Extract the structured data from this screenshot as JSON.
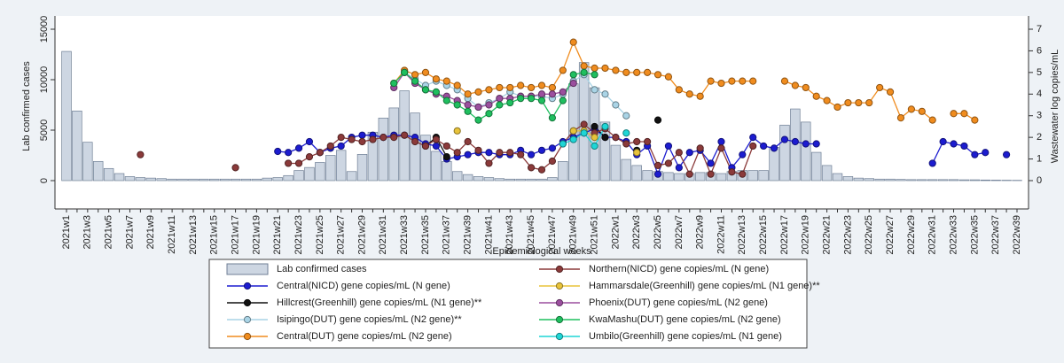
{
  "chart_data": {
    "type": "bar-line",
    "xlabel": "Epidemiological weeks",
    "ylabel": "Lab confirmed cases",
    "y2label": "Wastewater log copies/mL",
    "ylim": [
      0,
      15000
    ],
    "yticks": [
      0,
      5000,
      10000,
      15000
    ],
    "y2lim": [
      0,
      7
    ],
    "y2ticks": [
      0,
      1,
      2,
      3,
      4,
      5,
      6,
      7
    ],
    "categories": [
      "2021w1",
      null,
      "2021w3",
      null,
      "2021w5",
      null,
      "2021w7",
      null,
      "2021w9",
      null,
      "2021w11",
      null,
      "2021w13",
      null,
      "2021w15",
      null,
      "2021w17",
      null,
      "2021w19",
      null,
      "2021w21",
      null,
      "2021w23",
      null,
      "2021w25",
      null,
      "2021w27",
      null,
      "2021w29",
      null,
      "2021w31",
      null,
      "2021w33",
      null,
      "2021w35",
      null,
      "2021w37",
      null,
      "2021w39",
      null,
      "2021w41",
      null,
      "2021w43",
      null,
      "2021w45",
      null,
      "2021w47",
      null,
      "2021w49",
      null,
      "2021w51",
      null,
      "2022w1",
      null,
      "2022w3",
      null,
      "2022w5",
      null,
      "2022w7",
      null,
      "2022w9",
      null,
      "2022w11",
      null,
      "2022w13",
      null,
      "2022w15",
      null,
      "2022w17",
      null,
      "2022w19",
      null,
      "2022w21",
      null,
      "2022w23",
      null,
      "2022w25",
      null,
      "2022w27",
      null,
      "2022w29",
      null,
      "2022w31",
      null,
      "2022w33",
      null,
      "2022w35",
      null,
      "2022w37",
      null,
      "2022w39"
    ],
    "bars": {
      "name": "Lab confirmed cases",
      "color": "#cdd6e2",
      "values": [
        12800,
        6900,
        3800,
        1900,
        1200,
        700,
        400,
        300,
        250,
        200,
        150,
        150,
        150,
        150,
        150,
        150,
        150,
        150,
        150,
        250,
        300,
        500,
        1000,
        1300,
        1800,
        2500,
        3000,
        900,
        2600,
        4800,
        6200,
        7200,
        8900,
        6700,
        4500,
        2900,
        1900,
        900,
        600,
        400,
        300,
        200,
        150,
        150,
        150,
        150,
        300,
        1900,
        9600,
        11700,
        9200,
        5800,
        3500,
        2100,
        1500,
        1000,
        900,
        800,
        700,
        700,
        800,
        800,
        700,
        900,
        1000,
        1000,
        1000,
        3300,
        5500,
        7100,
        5800,
        2800,
        1500,
        700,
        400,
        250,
        200,
        150,
        150,
        120,
        100,
        100,
        100,
        100,
        100,
        80,
        80,
        60,
        50,
        40,
        30
      ]
    },
    "series": [
      {
        "name": "Central(NICD) gene copies/mL (N gene)",
        "color": "#1c1cd0",
        "axis": "y2",
        "values": [
          null,
          null,
          null,
          null,
          null,
          null,
          null,
          null,
          null,
          null,
          null,
          null,
          null,
          null,
          null,
          null,
          null,
          null,
          null,
          null,
          1.35,
          1.3,
          1.5,
          1.8,
          1.3,
          1.5,
          1.6,
          2.0,
          2.1,
          2.1,
          2.0,
          2.1,
          2.1,
          2.0,
          1.7,
          1.6,
          1.0,
          1.1,
          1.2,
          1.3,
          1.3,
          1.2,
          1.2,
          1.4,
          1.2,
          1.4,
          1.5,
          1.8,
          2.0,
          2.2,
          2.4,
          2.0,
          2.0,
          1.8,
          1.2,
          1.6,
          0.3,
          1.6,
          0.6,
          1.3,
          1.4,
          0.8,
          1.8,
          0.6,
          1.2,
          2.0,
          1.6,
          1.5,
          1.9,
          1.8,
          1.7,
          1.7,
          null,
          null,
          null,
          null,
          null,
          null,
          null,
          null,
          null,
          null,
          0.8,
          1.8,
          1.7,
          1.6,
          1.2,
          1.3,
          null,
          1.2,
          null
        ]
      },
      {
        "name": "Hillcrest(Greenhill) gene copies/mL (N1 gene)**",
        "color": "#111111",
        "axis": "y2",
        "values": [
          null,
          null,
          null,
          null,
          null,
          null,
          null,
          null,
          null,
          null,
          null,
          null,
          null,
          null,
          null,
          null,
          null,
          null,
          null,
          null,
          null,
          null,
          null,
          null,
          null,
          null,
          null,
          null,
          null,
          null,
          null,
          null,
          null,
          null,
          1.6,
          2.0,
          1.1,
          null,
          null,
          null,
          null,
          null,
          null,
          null,
          null,
          null,
          null,
          null,
          null,
          null,
          2.5,
          2.0,
          null,
          null,
          1.4,
          null,
          2.8,
          null,
          null,
          null,
          null,
          null,
          null,
          null,
          null,
          null,
          null,
          null,
          null,
          null,
          null,
          null,
          null,
          null,
          null,
          null,
          null,
          null,
          null,
          null,
          null,
          null,
          null,
          null,
          null,
          null,
          null,
          null,
          null,
          null,
          null
        ]
      },
      {
        "name": "Isipingo(DUT) gene copies/mL (N2 gene)**",
        "color": "#a9d4e6",
        "axis": "y2",
        "values": [
          null,
          null,
          null,
          null,
          null,
          null,
          null,
          null,
          null,
          null,
          null,
          null,
          null,
          null,
          null,
          null,
          null,
          null,
          null,
          null,
          null,
          null,
          null,
          null,
          null,
          null,
          null,
          null,
          null,
          null,
          null,
          null,
          5.0,
          4.7,
          4.4,
          4.6,
          4.4,
          4.2,
          3.8,
          3.4,
          3.6,
          3.8,
          4.1,
          3.9,
          3.9,
          3.9,
          3.8,
          4.0,
          4.6,
          4.9,
          4.2,
          4.0,
          3.5,
          3.0,
          null,
          null,
          null,
          null,
          null,
          null,
          null,
          null,
          null,
          null,
          null,
          null,
          null,
          null,
          null,
          null,
          null,
          null,
          null,
          null,
          null,
          null,
          null,
          null,
          null,
          null,
          null,
          null,
          null,
          null,
          null,
          null,
          null,
          null,
          null,
          null,
          null
        ]
      },
      {
        "name": "Central(DUT) gene copies/mL (N2 gene)",
        "color": "#f08c1e",
        "axis": "y2",
        "values": [
          null,
          null,
          null,
          null,
          null,
          null,
          null,
          null,
          null,
          null,
          null,
          null,
          null,
          null,
          null,
          null,
          null,
          null,
          null,
          null,
          null,
          null,
          null,
          null,
          null,
          null,
          null,
          null,
          null,
          null,
          null,
          4.5,
          5.1,
          4.9,
          5.0,
          4.7,
          4.6,
          4.4,
          4.0,
          4.1,
          4.2,
          4.3,
          4.3,
          4.4,
          4.3,
          4.4,
          4.3,
          5.1,
          6.4,
          5.3,
          5.2,
          5.2,
          5.1,
          5.0,
          5.0,
          5.0,
          4.9,
          4.8,
          4.2,
          4.0,
          3.9,
          4.6,
          4.5,
          4.6,
          4.6,
          4.6,
          null,
          null,
          4.6,
          4.4,
          4.3,
          3.9,
          3.7,
          3.4,
          3.6,
          3.6,
          3.6,
          4.3,
          4.1,
          2.9,
          3.3,
          3.2,
          2.8,
          null,
          3.1,
          3.1,
          2.8,
          null,
          null,
          null,
          null
        ]
      },
      {
        "name": "Northern(NICD) gene copies/mL (N gene)",
        "color": "#8b3a3a",
        "axis": "y2",
        "values": [
          null,
          null,
          null,
          null,
          null,
          null,
          null,
          1.2,
          null,
          null,
          null,
          null,
          null,
          null,
          null,
          null,
          0.6,
          null,
          null,
          null,
          null,
          0.8,
          0.8,
          1.1,
          1.3,
          1.6,
          2.0,
          1.9,
          1.8,
          1.9,
          2.0,
          2.0,
          2.1,
          1.8,
          1.6,
          1.9,
          1.6,
          1.3,
          1.8,
          1.4,
          0.8,
          1.3,
          1.3,
          1.2,
          0.6,
          0.5,
          0.9,
          1.7,
          2.3,
          2.6,
          2.2,
          2.4,
          2.0,
          1.7,
          1.8,
          1.8,
          0.7,
          0.8,
          1.3,
          0.3,
          1.5,
          0.3,
          1.5,
          0.4,
          0.3,
          1.6,
          null,
          null,
          null,
          null,
          null,
          null,
          null,
          null,
          null,
          null,
          null,
          null,
          null,
          null,
          null,
          null,
          null,
          null,
          null,
          null,
          null,
          null,
          null,
          null,
          null
        ]
      },
      {
        "name": "Hammarsdale(Greenhill) gene copies/mL (N1 gene)**",
        "color": "#e8c33a",
        "axis": "y2",
        "values": [
          null,
          null,
          null,
          null,
          null,
          null,
          null,
          null,
          null,
          null,
          null,
          null,
          null,
          null,
          null,
          null,
          null,
          null,
          null,
          null,
          null,
          null,
          null,
          null,
          null,
          null,
          null,
          null,
          null,
          null,
          null,
          null,
          null,
          null,
          null,
          null,
          null,
          2.3,
          null,
          null,
          null,
          null,
          null,
          null,
          null,
          null,
          null,
          null,
          2.3,
          2.3,
          2.0,
          null,
          null,
          null,
          1.3,
          null,
          null,
          null,
          null,
          null,
          null,
          null,
          null,
          null,
          null,
          null,
          null,
          null,
          null,
          null,
          null,
          null,
          null,
          null,
          null,
          null,
          null,
          null,
          null,
          null,
          null,
          null,
          null,
          null,
          null,
          null,
          null,
          null,
          null,
          null,
          null
        ]
      },
      {
        "name": "Phoenix(DUT) gene copies/mL (N2 gene)",
        "color": "#9b4f9e",
        "axis": "y2",
        "values": [
          null,
          null,
          null,
          null,
          null,
          null,
          null,
          null,
          null,
          null,
          null,
          null,
          null,
          null,
          null,
          null,
          null,
          null,
          null,
          null,
          null,
          null,
          null,
          null,
          null,
          null,
          null,
          null,
          null,
          null,
          null,
          4.3,
          5.0,
          4.5,
          4.2,
          4.0,
          3.9,
          3.7,
          3.5,
          3.4,
          3.5,
          3.8,
          3.8,
          3.9,
          3.9,
          4.0,
          4.0,
          4.1,
          4.5,
          null,
          null,
          null,
          null,
          null,
          null,
          null,
          null,
          null,
          null,
          null,
          null,
          null,
          null,
          null,
          null,
          null,
          null,
          null,
          null,
          null,
          null,
          null,
          null,
          null,
          null,
          null,
          null,
          null,
          null,
          null,
          null,
          null,
          null,
          null,
          null,
          null,
          null,
          null,
          null,
          null,
          null
        ]
      },
      {
        "name": "KwaMashu(DUT) gene copies/mL (N2 gene)",
        "color": "#1fbf5f",
        "axis": "y2",
        "values": [
          null,
          null,
          null,
          null,
          null,
          null,
          null,
          null,
          null,
          null,
          null,
          null,
          null,
          null,
          null,
          null,
          null,
          null,
          null,
          null,
          null,
          null,
          null,
          null,
          null,
          null,
          null,
          null,
          null,
          null,
          null,
          4.5,
          5.0,
          4.6,
          4.2,
          4.1,
          3.7,
          3.5,
          3.2,
          2.8,
          3.1,
          3.5,
          3.6,
          3.8,
          3.8,
          3.7,
          2.9,
          3.7,
          4.9,
          5.0,
          4.9,
          null,
          null,
          null,
          null,
          null,
          null,
          null,
          null,
          null,
          null,
          null,
          null,
          null,
          null,
          null,
          null,
          null,
          null,
          null,
          null,
          null,
          null,
          null,
          null,
          null,
          null,
          null,
          null,
          null,
          null,
          null,
          null,
          null,
          null,
          null,
          null,
          null,
          null,
          null,
          null
        ]
      },
      {
        "name": "Umbilo(Greenhill) gene copies/mL (N1 gene)",
        "color": "#1fd6d6",
        "axis": "y2",
        "values": [
          null,
          null,
          null,
          null,
          null,
          null,
          null,
          null,
          null,
          null,
          null,
          null,
          null,
          null,
          null,
          null,
          null,
          null,
          null,
          null,
          null,
          null,
          null,
          null,
          null,
          null,
          null,
          null,
          null,
          null,
          null,
          null,
          null,
          null,
          null,
          null,
          null,
          null,
          null,
          null,
          null,
          null,
          null,
          null,
          null,
          null,
          null,
          1.7,
          1.9,
          2.2,
          1.6,
          2.5,
          null,
          2.2,
          null,
          null,
          null,
          null,
          null,
          null,
          null,
          null,
          null,
          null,
          null,
          null,
          null,
          null,
          null,
          null,
          null,
          null,
          null,
          null,
          null,
          null,
          null,
          null,
          null,
          null,
          null,
          null,
          null,
          null,
          null,
          null,
          null,
          null,
          null,
          null,
          null
        ]
      }
    ]
  }
}
